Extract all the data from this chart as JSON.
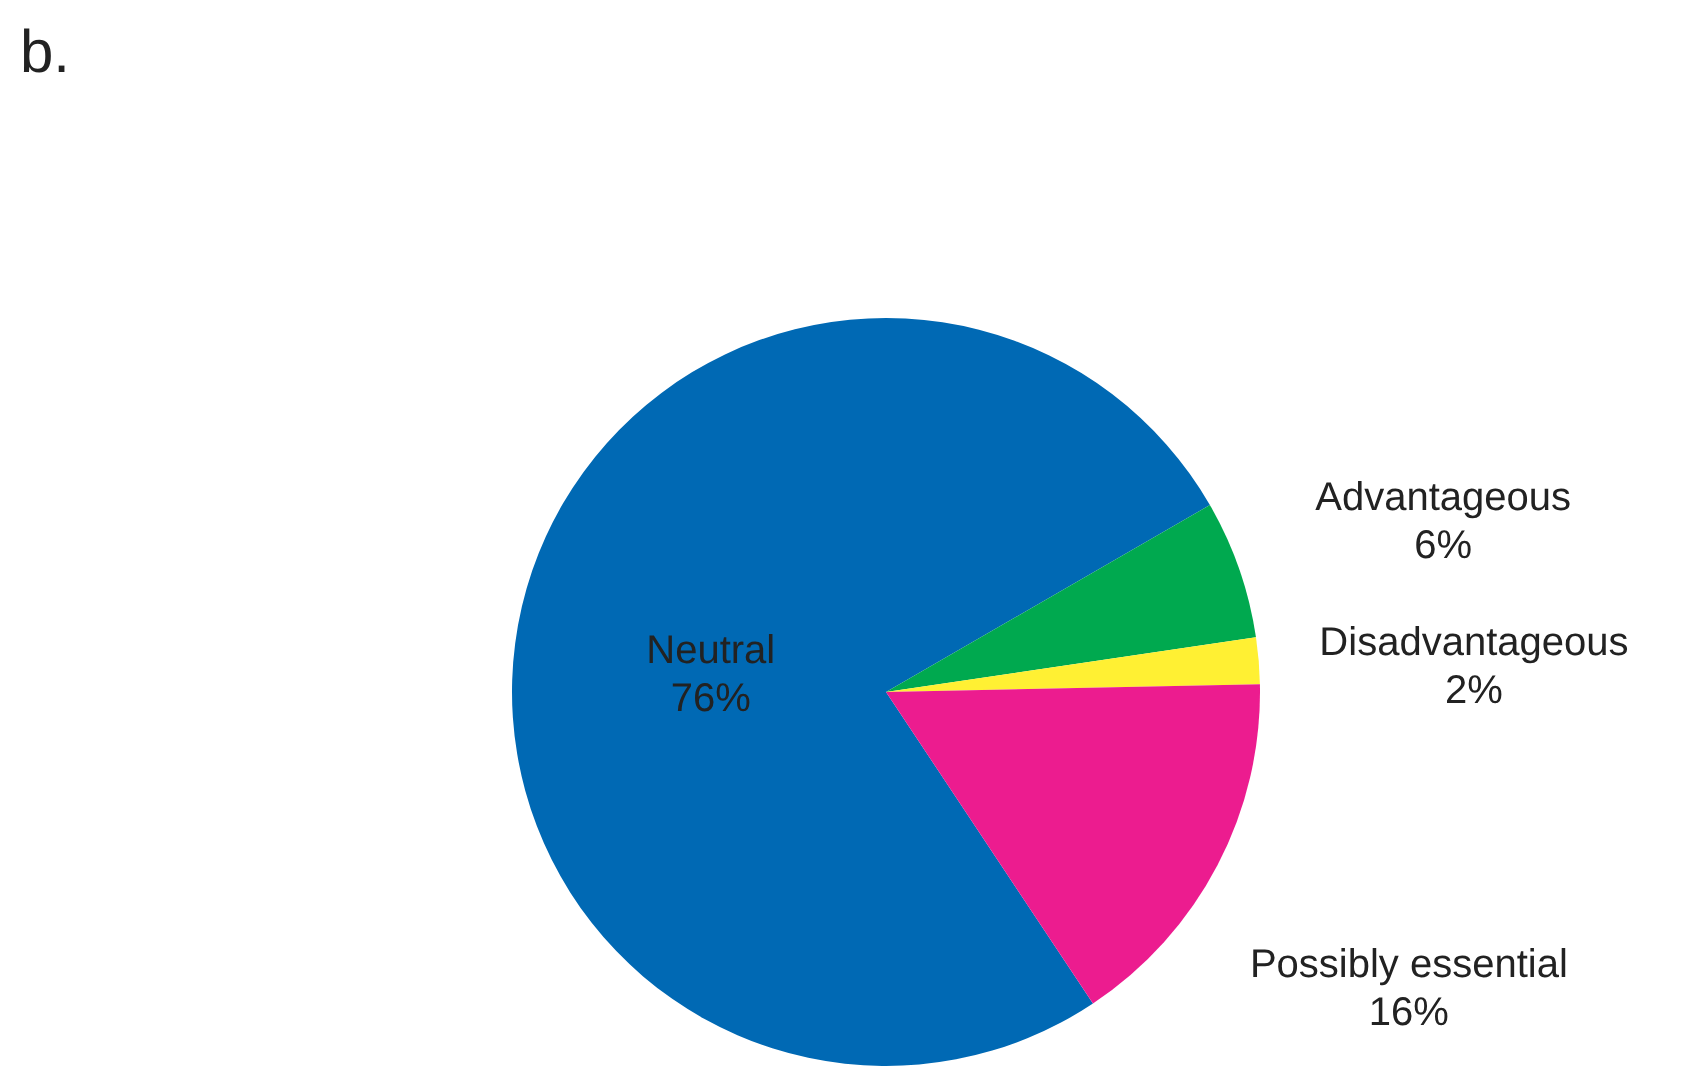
{
  "chart_data": {
    "type": "pie",
    "title": "b.",
    "categories": [
      "Neutral",
      "Advantageous",
      "Disadvantageous",
      "Possibly essential"
    ],
    "values": [
      76,
      6,
      2,
      16
    ],
    "colors": [
      "#0069b4",
      "#00a94f",
      "#fff033",
      "#ec1c8f"
    ],
    "value_labels": [
      "76%",
      "6%",
      "2%",
      "16%"
    ]
  }
}
